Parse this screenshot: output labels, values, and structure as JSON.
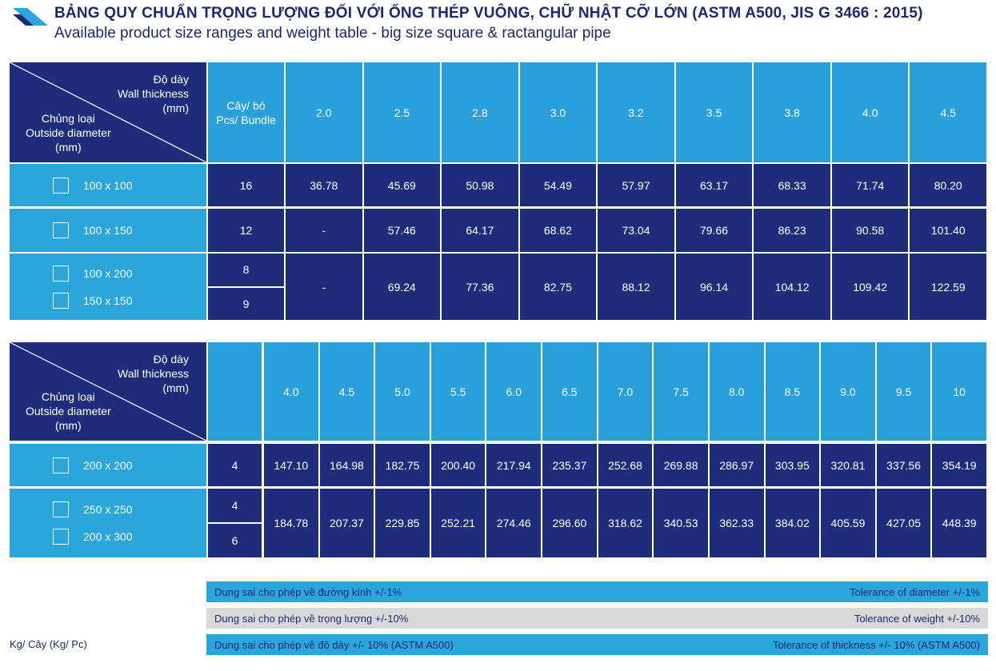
{
  "header": {
    "title": "BẢNG QUY CHUẨN TRỌNG LƯỢNG ĐỐI VỚI ỐNG THÉP VUÔNG, CHỮ NHẬT CỠ LỚN (ASTM A500, JIS G 3466 : 2015)",
    "subtitle": "Available product size ranges and weight table - big size square & ractangular pipe"
  },
  "tables": [
    {
      "corner": {
        "thickness": [
          "Độ dày",
          "Wall thickness",
          "(mm)"
        ],
        "type": [
          "Chủng loại",
          "Outside diameter",
          "(mm)"
        ]
      },
      "bundle_header": [
        "Cây/ bó",
        "Pcs/ Bundle"
      ],
      "thicknesses": [
        "2.0",
        "2.5",
        "2.8",
        "3.0",
        "3.2",
        "3.5",
        "3.8",
        "4.0",
        "4.5"
      ],
      "rows": [
        {
          "sizes": [
            "100 x 100"
          ],
          "bundles": [
            "16"
          ],
          "weights": [
            "36.78",
            "45.69",
            "50.98",
            "54.49",
            "57.97",
            "63.17",
            "68.33",
            "71.74",
            "80.20"
          ]
        },
        {
          "sizes": [
            "100 x 150"
          ],
          "bundles": [
            "12"
          ],
          "weights": [
            "-",
            "57.46",
            "64.17",
            "68.62",
            "73.04",
            "79.66",
            "86.23",
            "90.58",
            "101.40"
          ]
        },
        {
          "sizes": [
            "100 x 200",
            "150 x 150"
          ],
          "bundles": [
            "8",
            "9"
          ],
          "weights": [
            "-",
            "69.24",
            "77.36",
            "82.75",
            "88.12",
            "96.14",
            "104.12",
            "109.42",
            "122.59"
          ]
        }
      ]
    },
    {
      "corner": {
        "thickness": [
          "Độ dày",
          "Wall thickness",
          "(mm)"
        ],
        "type": [
          "Chủng loại",
          "Outside diameter",
          "(mm)"
        ]
      },
      "thicknesses": [
        "4.0",
        "4.5",
        "5.0",
        "5.5",
        "6.0",
        "6.5",
        "7.0",
        "7.5",
        "8.0",
        "8.5",
        "9.0",
        "9.5",
        "10"
      ],
      "rows": [
        {
          "sizes": [
            "200 x 200"
          ],
          "bundles": [
            "4"
          ],
          "weights": [
            "147.10",
            "164.98",
            "182.75",
            "200.40",
            "217.94",
            "235.37",
            "252.68",
            "269.88",
            "286.97",
            "303.95",
            "320.81",
            "337.56",
            "354.19"
          ]
        },
        {
          "sizes": [
            "250 x 250",
            "200 x 300"
          ],
          "bundles": [
            "4",
            "6"
          ],
          "weights": [
            "184.78",
            "207.37",
            "229.85",
            "252.21",
            "274.46",
            "296.60",
            "318.62",
            "340.53",
            "362.33",
            "384.02",
            "405.59",
            "427.05",
            "448.39"
          ]
        }
      ]
    }
  ],
  "tolerances": [
    {
      "vi": "Dung sai cho phép về đường kính +/-1%",
      "en": "Tolerance of diameter +/-1%"
    },
    {
      "vi": "Dung sai cho phép về trọng lượng +/-10%",
      "en": "Tolerance of weight +/-10%"
    },
    {
      "vi": "Dung sai cho phép về độ dày +/- 10% (ASTM A500)",
      "en": "Tolerance of thickness +/- 10% (ASTM A500)"
    }
  ],
  "unit": "Kg/ Cây (Kg/ Pc)"
}
